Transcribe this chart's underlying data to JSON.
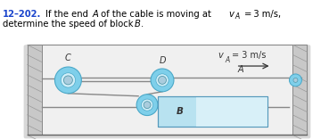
{
  "bg_color": "#ffffff",
  "text_color": "#000000",
  "blue_num_color": "#1a44cc",
  "cable_color": "#888888",
  "pulley_face": "#7ecfea",
  "pulley_edge": "#4aa8c8",
  "pulley_hub": "#aaccdd",
  "pulley_hub_edge": "#5599aa",
  "block_face": "#a8ddef",
  "block_edge": "#5599bb",
  "wall_face": "#c8c8c8",
  "wall_edge": "#888888",
  "wall_shadow": "#b0b0b0",
  "figsize": [
    3.69,
    1.57
  ],
  "dpi": 100,
  "label_C": "C",
  "label_D": "D",
  "label_A": "A",
  "label_B": "B"
}
